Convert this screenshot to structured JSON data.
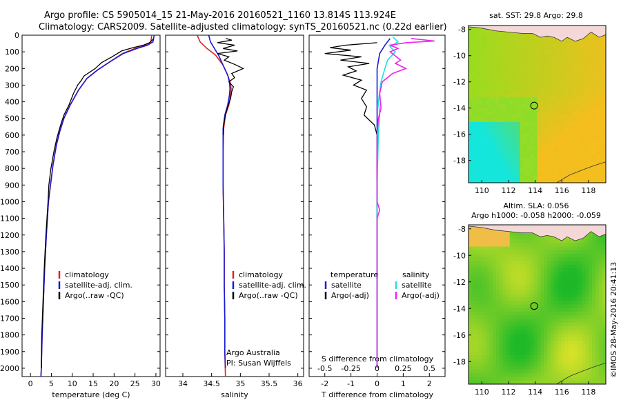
{
  "title": {
    "line1": "Argo profile: CS 5905014_15 21-May-2016 20160521_1160 13.814S 113.924E",
    "line2": "Climatology: CARS2009. Satellite-adjusted climatology: synTS_20160521.nc (0.22d earlier)"
  },
  "colors": {
    "climatology": "#dd2222",
    "satellite": "#1a1ad6",
    "argo": "#000000",
    "s_satellite": "#22e0e0",
    "s_argo": "#ee22ee"
  },
  "chart_data": [
    {
      "type": "line",
      "name": "temperature",
      "xlabel": "temperature (deg C)",
      "xlim": [
        -2,
        31
      ],
      "ylim": [
        2050,
        0
      ],
      "xticks": [
        "0",
        "5",
        "10",
        "15",
        "20",
        "25",
        "30"
      ],
      "xtick_values": [
        0,
        5,
        10,
        15,
        20,
        25,
        30
      ],
      "yticks": [
        "0",
        "100",
        "200",
        "300",
        "400",
        "500",
        "600",
        "700",
        "800",
        "900",
        "1000",
        "1100",
        "1200",
        "1300",
        "1400",
        "1500",
        "1600",
        "1700",
        "1800",
        "1900",
        "2000"
      ],
      "ytick_values": [
        0,
        100,
        200,
        300,
        400,
        500,
        600,
        700,
        800,
        900,
        1000,
        1100,
        1200,
        1300,
        1400,
        1500,
        1600,
        1700,
        1800,
        1900,
        2000
      ],
      "legend": [
        "climatology",
        "satellite-adj. clim.",
        "Argo(..raw -QC)"
      ],
      "series": [
        {
          "name": "climatology",
          "color_key": "climatology",
          "points": [
            [
              29,
              0
            ],
            [
              28.8,
              40
            ],
            [
              27.5,
              60
            ],
            [
              25,
              80
            ],
            [
              22,
              110
            ],
            [
              19,
              160
            ],
            [
              16,
              210
            ],
            [
              13.5,
              260
            ],
            [
              11.5,
              330
            ],
            [
              9.5,
              420
            ],
            [
              8,
              500
            ],
            [
              7,
              580
            ],
            [
              6.2,
              660
            ],
            [
              5.4,
              780
            ],
            [
              4.8,
              900
            ],
            [
              4.3,
              1000
            ],
            [
              3.8,
              1200
            ],
            [
              3.4,
              1400
            ],
            [
              3.1,
              1600
            ],
            [
              2.8,
              1800
            ],
            [
              2.6,
              2000
            ],
            [
              2.5,
              2050
            ]
          ]
        },
        {
          "name": "satellite-adj. clim.",
          "color_key": "satellite",
          "points": [
            [
              29.6,
              0
            ],
            [
              29.3,
              40
            ],
            [
              28,
              60
            ],
            [
              25.5,
              80
            ],
            [
              22.2,
              110
            ],
            [
              19,
              160
            ],
            [
              16,
              210
            ],
            [
              13.5,
              260
            ],
            [
              11.5,
              330
            ],
            [
              9.5,
              420
            ],
            [
              8,
              500
            ],
            [
              7,
              580
            ],
            [
              6.2,
              660
            ],
            [
              5.4,
              780
            ],
            [
              4.8,
              900
            ],
            [
              4.3,
              1000
            ],
            [
              3.8,
              1200
            ],
            [
              3.4,
              1400
            ],
            [
              3.1,
              1600
            ],
            [
              2.8,
              1800
            ],
            [
              2.6,
              2000
            ],
            [
              2.5,
              2050
            ]
          ]
        },
        {
          "name": "Argo",
          "color_key": "argo",
          "points": [
            [
              29.5,
              20
            ],
            [
              28.5,
              45
            ],
            [
              27,
              60
            ],
            [
              24.5,
              75
            ],
            [
              21.8,
              95
            ],
            [
              19.5,
              130
            ],
            [
              17,
              165
            ],
            [
              15.5,
              200
            ],
            [
              14,
              225
            ],
            [
              12.8,
              245
            ],
            [
              12.2,
              270
            ],
            [
              11.3,
              300
            ],
            [
              10.3,
              350
            ],
            [
              9.2,
              420
            ],
            [
              8,
              480
            ],
            [
              7.2,
              540
            ],
            [
              6.3,
              620
            ],
            [
              5.6,
              700
            ],
            [
              4.9,
              800
            ],
            [
              4.4,
              900
            ],
            [
              4.2,
              1000
            ],
            [
              3.7,
              1200
            ],
            [
              3.3,
              1400
            ],
            [
              3.0,
              1600
            ],
            [
              2.7,
              1800
            ],
            [
              2.6,
              2000
            ]
          ]
        }
      ]
    },
    {
      "type": "line",
      "name": "salinity",
      "xlabel": "salinity",
      "xlim": [
        33.7,
        36.1
      ],
      "ylim": [
        2050,
        0
      ],
      "xticks": [
        "34",
        "34.5",
        "35",
        "35.5",
        "36"
      ],
      "xtick_values": [
        34,
        34.5,
        35,
        35.5,
        36
      ],
      "legend": [
        "climatology",
        "satellite-adj. clim.",
        "Argo(..raw -QC)"
      ],
      "annotation": [
        "Argo Australia",
        "PI: Susan Wijffels"
      ],
      "series": [
        {
          "name": "climatology",
          "color_key": "climatology",
          "points": [
            [
              34.25,
              0
            ],
            [
              34.3,
              40
            ],
            [
              34.42,
              80
            ],
            [
              34.57,
              120
            ],
            [
              34.7,
              180
            ],
            [
              34.78,
              240
            ],
            [
              34.82,
              280
            ],
            [
              34.84,
              320
            ],
            [
              34.83,
              360
            ],
            [
              34.8,
              420
            ],
            [
              34.74,
              480
            ],
            [
              34.71,
              560
            ],
            [
              34.7,
              700
            ],
            [
              34.7,
              900
            ],
            [
              34.71,
              1100
            ],
            [
              34.72,
              1300
            ],
            [
              34.72,
              1500
            ],
            [
              34.73,
              1700
            ],
            [
              34.73,
              1900
            ],
            [
              34.74,
              2050
            ]
          ]
        },
        {
          "name": "satellite-adj. clim.",
          "color_key": "satellite",
          "points": [
            [
              34.45,
              0
            ],
            [
              34.48,
              40
            ],
            [
              34.55,
              80
            ],
            [
              34.62,
              120
            ],
            [
              34.7,
              180
            ],
            [
              34.78,
              240
            ],
            [
              34.81,
              280
            ],
            [
              34.82,
              320
            ],
            [
              34.81,
              360
            ],
            [
              34.78,
              420
            ],
            [
              34.73,
              480
            ],
            [
              34.7,
              560
            ],
            [
              34.7,
              700
            ],
            [
              34.7,
              900
            ],
            [
              34.71,
              1100
            ],
            [
              34.72,
              1300
            ],
            [
              34.72,
              1500
            ],
            [
              34.73,
              1700
            ],
            [
              34.73,
              1900
            ],
            [
              34.74,
              2000
            ]
          ]
        },
        {
          "name": "Argo",
          "color_key": "argo",
          "points": [
            [
              34.75,
              20
            ],
            [
              34.85,
              30
            ],
            [
              34.6,
              45
            ],
            [
              34.9,
              60
            ],
            [
              34.7,
              80
            ],
            [
              34.95,
              95
            ],
            [
              34.6,
              110
            ],
            [
              34.8,
              130
            ],
            [
              34.72,
              150
            ],
            [
              34.9,
              175
            ],
            [
              35.05,
              200
            ],
            [
              34.85,
              230
            ],
            [
              34.9,
              255
            ],
            [
              34.8,
              280
            ],
            [
              34.88,
              310
            ],
            [
              34.85,
              340
            ],
            [
              34.83,
              380
            ],
            [
              34.78,
              430
            ],
            [
              34.74,
              480
            ],
            [
              34.71,
              540
            ],
            [
              34.7,
              600
            ]
          ]
        }
      ]
    },
    {
      "type": "line",
      "name": "difference",
      "xlabel": "T difference from climatology",
      "xlabel_top": "S difference from climatology",
      "xlim": [
        -2.6,
        2.6
      ],
      "ylim": [
        2050,
        0
      ],
      "xticks": [
        "-2",
        "-1",
        "0",
        "1",
        "2"
      ],
      "xtick_values": [
        -2,
        -1,
        0,
        1,
        2
      ],
      "xticks_s": [
        "-0.5",
        "-0.25",
        "0",
        "0.25",
        "0.5"
      ],
      "legend_left_title": "temperature",
      "legend_right_title": "salinity",
      "legend_left": [
        "satellite",
        "Argo(-adj)"
      ],
      "legend_right": [
        "satellite",
        "Argo(-adj)"
      ],
      "series": [
        {
          "name": "T satellite",
          "color_key": "satellite",
          "points": [
            [
              0.5,
              20
            ],
            [
              0.3,
              60
            ],
            [
              0.1,
              110
            ],
            [
              0,
              200
            ],
            [
              0,
              400
            ],
            [
              0,
              600
            ],
            [
              0,
              900
            ],
            [
              0,
              1200
            ],
            [
              0,
              1500
            ],
            [
              0,
              1800
            ],
            [
              0,
              2000
            ]
          ]
        },
        {
          "name": "T Argo",
          "color_key": "argo",
          "points": [
            [
              0,
              45
            ],
            [
              -1.2,
              60
            ],
            [
              -1.8,
              75
            ],
            [
              -1.0,
              90
            ],
            [
              -2.0,
              110
            ],
            [
              -0.6,
              130
            ],
            [
              -1.4,
              150
            ],
            [
              -0.3,
              170
            ],
            [
              -1.1,
              190
            ],
            [
              -0.8,
              215
            ],
            [
              -1.3,
              240
            ],
            [
              -0.6,
              270
            ],
            [
              -0.9,
              300
            ],
            [
              -0.4,
              330
            ],
            [
              -0.6,
              380
            ],
            [
              -0.4,
              430
            ],
            [
              -0.5,
              480
            ],
            [
              -0.1,
              540
            ],
            [
              0,
              600
            ],
            [
              0,
              800
            ],
            [
              0,
              1000
            ],
            [
              0,
              1200
            ],
            [
              0,
              1400
            ],
            [
              0,
              1600
            ],
            [
              0,
              1800
            ],
            [
              0,
              1950
            ]
          ]
        },
        {
          "name": "S satellite",
          "color_key": "s_satellite",
          "points": [
            [
              0.6,
              10
            ],
            [
              0.8,
              40
            ],
            [
              0.5,
              70
            ],
            [
              0.7,
              100
            ],
            [
              0.4,
              150
            ],
            [
              0.3,
              200
            ],
            [
              0.15,
              280
            ],
            [
              0.05,
              400
            ],
            [
              0.1,
              470
            ],
            [
              0.05,
              600
            ],
            [
              0,
              900
            ],
            [
              0,
              1200
            ],
            [
              0,
              1500
            ],
            [
              0,
              1800
            ],
            [
              0,
              2000
            ]
          ]
        },
        {
          "name": "S Argo",
          "color_key": "s_argo",
          "points": [
            [
              1.3,
              20
            ],
            [
              2.2,
              35
            ],
            [
              1.1,
              45
            ],
            [
              0.5,
              60
            ],
            [
              0.8,
              80
            ],
            [
              0.5,
              100
            ],
            [
              0.9,
              150
            ],
            [
              0.7,
              170
            ],
            [
              1.1,
              200
            ],
            [
              0.6,
              230
            ],
            [
              0.2,
              280
            ],
            [
              0.1,
              350
            ],
            [
              0.15,
              440
            ],
            [
              0.05,
              500
            ],
            [
              0,
              600
            ],
            [
              0,
              1000
            ],
            [
              0.1,
              1050
            ],
            [
              0,
              1100
            ],
            [
              0,
              1500
            ],
            [
              0,
              2000
            ]
          ]
        }
      ]
    },
    {
      "type": "heatmap",
      "name": "sst_map",
      "title": "sat. SST: 29.8  Argo: 29.8",
      "xlim": [
        109,
        119.3
      ],
      "ylim": [
        -19.7,
        -7.7
      ],
      "xticks": [
        "110",
        "112",
        "114",
        "116",
        "118"
      ],
      "xtick_values": [
        110,
        112,
        114,
        116,
        118
      ],
      "yticks": [
        "-8",
        "-10",
        "-12",
        "-14",
        "-16",
        "-18"
      ],
      "ytick_values": [
        -8,
        -10,
        -12,
        -14,
        -16,
        -18
      ],
      "marker": [
        113.924,
        -13.814
      ]
    },
    {
      "type": "heatmap",
      "name": "sla_map",
      "title": "Altim. SLA: 0.056",
      "subtitle": "Argo h1000: -0.058 h2000: -0.059",
      "xlim": [
        109,
        119.3
      ],
      "ylim": [
        -19.7,
        -7.7
      ],
      "xticks": [
        "110",
        "112",
        "114",
        "116",
        "118"
      ],
      "xtick_values": [
        110,
        112,
        114,
        116,
        118
      ],
      "yticks": [
        "-8",
        "-10",
        "-12",
        "-14",
        "-16",
        "-18"
      ],
      "ytick_values": [
        -8,
        -10,
        -12,
        -14,
        -16,
        -18
      ],
      "marker": [
        113.924,
        -13.814
      ]
    }
  ],
  "footer": "©IMOS 28-May-2016 20:41:13"
}
